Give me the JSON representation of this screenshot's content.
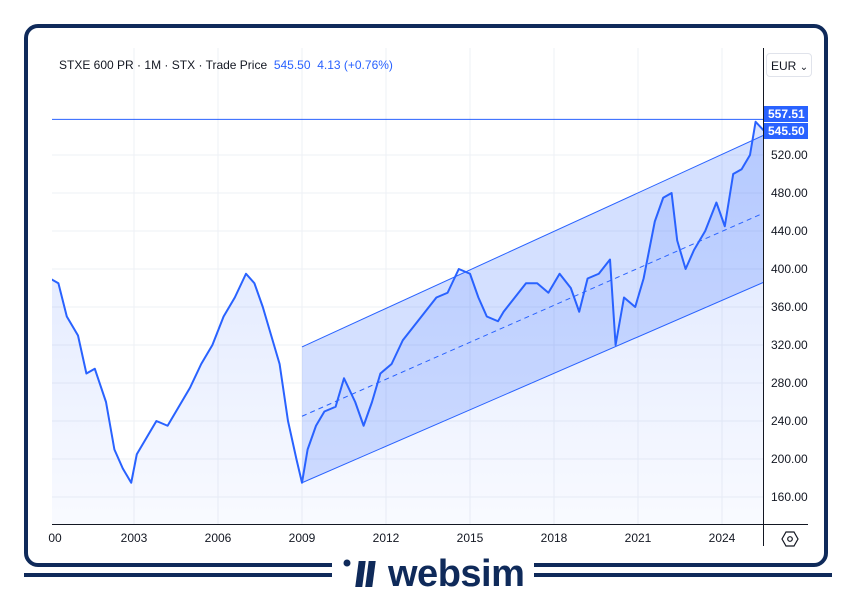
{
  "header": {
    "symbol": "STXE 600 PR",
    "interval": "1M",
    "exchange": "STX",
    "series_type": "Trade Price",
    "separator": "·",
    "last_price": "545.50",
    "change": "4.13 (+0.76%)"
  },
  "currency": {
    "label": "EUR",
    "chevron": "⌄"
  },
  "price_tags": {
    "high": "557.51",
    "last": "545.50"
  },
  "y_axis": {
    "ticks": [
      "520.00",
      "480.00",
      "440.00",
      "400.00",
      "360.00",
      "320.00",
      "280.00",
      "240.00",
      "200.00",
      "160.00"
    ]
  },
  "x_axis": {
    "ticks": [
      "00",
      "2003",
      "2006",
      "2009",
      "2012",
      "2015",
      "2018",
      "2021",
      "2024"
    ]
  },
  "footer": {
    "brand": "websim"
  },
  "colors": {
    "line": "#2962ff",
    "frame": "#0f2a5a",
    "channel_fill": "#2962ff",
    "tag": "#2962ff"
  },
  "chart_data": {
    "type": "line",
    "title": "STXE 600 PR · 1M · STX · Trade Price",
    "xlabel": "",
    "ylabel": "EUR",
    "ylim": [
      140,
      580
    ],
    "x_range": [
      2000,
      2025.8
    ],
    "grid": true,
    "x": [
      2000.0,
      2000.3,
      2000.6,
      2001.0,
      2001.3,
      2001.6,
      2002.0,
      2002.3,
      2002.6,
      2002.9,
      2003.1,
      2003.5,
      2003.8,
      2004.2,
      2004.6,
      2005.0,
      2005.4,
      2005.8,
      2006.2,
      2006.6,
      2007.0,
      2007.3,
      2007.6,
      2007.9,
      2008.2,
      2008.5,
      2008.8,
      2009.0,
      2009.2,
      2009.5,
      2009.8,
      2010.2,
      2010.5,
      2010.9,
      2011.2,
      2011.5,
      2011.8,
      2012.2,
      2012.6,
      2013.0,
      2013.4,
      2013.8,
      2014.2,
      2014.6,
      2015.0,
      2015.3,
      2015.6,
      2016.0,
      2016.2,
      2016.6,
      2017.0,
      2017.4,
      2017.8,
      2018.2,
      2018.6,
      2018.9,
      2019.2,
      2019.6,
      2020.0,
      2020.2,
      2020.5,
      2020.9,
      2021.2,
      2021.6,
      2021.9,
      2022.2,
      2022.4,
      2022.7,
      2023.0,
      2023.4,
      2023.8,
      2024.1,
      2024.4,
      2024.7,
      2025.0,
      2025.2,
      2025.5
    ],
    "values": [
      390,
      385,
      350,
      330,
      290,
      295,
      260,
      210,
      190,
      175,
      205,
      225,
      240,
      235,
      255,
      275,
      300,
      320,
      350,
      370,
      395,
      385,
      360,
      330,
      300,
      240,
      200,
      175,
      210,
      235,
      250,
      255,
      285,
      260,
      235,
      260,
      290,
      300,
      325,
      340,
      355,
      370,
      375,
      400,
      395,
      370,
      350,
      345,
      355,
      370,
      385,
      385,
      375,
      395,
      380,
      355,
      390,
      395,
      410,
      320,
      370,
      360,
      390,
      450,
      475,
      480,
      430,
      400,
      420,
      440,
      470,
      445,
      500,
      505,
      520,
      555,
      545.5
    ],
    "annotations": [
      {
        "type": "horizontal_line",
        "value": 557.51
      },
      {
        "type": "regression_channel",
        "start_x": 2009.0,
        "end_x": 2025.8,
        "upper": [
          318,
          545
        ],
        "middle": [
          245,
          463
        ],
        "lower": [
          175,
          390
        ]
      }
    ]
  }
}
